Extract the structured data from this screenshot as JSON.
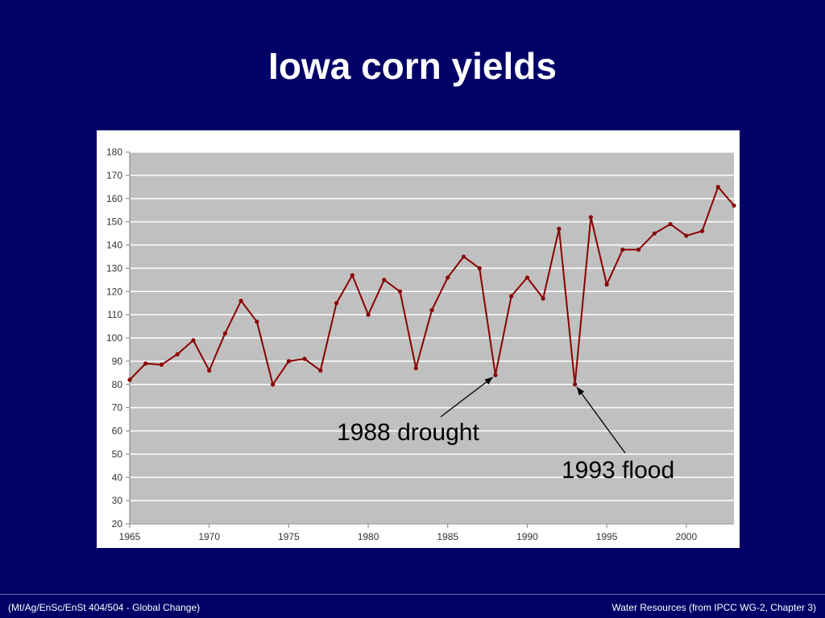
{
  "slide": {
    "title": "Iowa corn yields",
    "footer_left": "(Mt/Ag/EnSc/EnSt 404/504 - Global Change)",
    "footer_right": "Water Resources (from IPCC WG-2, Chapter 3)"
  },
  "annotations": [
    {
      "label": "1988 drought",
      "target_year": 1988
    },
    {
      "label": "1993 flood",
      "target_year": 1993
    }
  ],
  "colors": {
    "background": "#000066",
    "plot_area": "#c0c0c0",
    "series": "#8b0000",
    "gridline": "#ffffff"
  },
  "chart_data": {
    "type": "line",
    "title": "",
    "xlabel": "",
    "ylabel": "",
    "xlim": [
      1965,
      2003
    ],
    "ylim": [
      20,
      180
    ],
    "xticks": [
      1965,
      1970,
      1975,
      1980,
      1985,
      1990,
      1995,
      2000
    ],
    "yticks": [
      20,
      30,
      40,
      50,
      60,
      70,
      80,
      90,
      100,
      110,
      120,
      130,
      140,
      150,
      160,
      170,
      180
    ],
    "grid": true,
    "legend": "none",
    "series": [
      {
        "x": [
          1965,
          1966,
          1967,
          1968,
          1969,
          1970,
          1971,
          1972,
          1973,
          1974,
          1975,
          1976,
          1977,
          1978,
          1979,
          1980,
          1981,
          1982,
          1983,
          1984,
          1985,
          1986,
          1987,
          1988,
          1989,
          1990,
          1991,
          1992,
          1993,
          1994,
          1995,
          1996,
          1997,
          1998,
          1999,
          2000,
          2001,
          2002,
          2003
        ],
        "y": [
          82,
          89,
          88.5,
          93,
          99,
          86,
          102,
          116,
          107,
          80,
          90,
          91,
          86,
          115,
          127,
          110,
          125,
          120,
          87,
          112,
          126,
          135,
          130,
          84,
          118,
          126,
          117,
          147,
          80,
          152,
          123,
          138,
          138,
          145,
          149,
          144,
          146,
          165,
          157
        ]
      }
    ]
  }
}
